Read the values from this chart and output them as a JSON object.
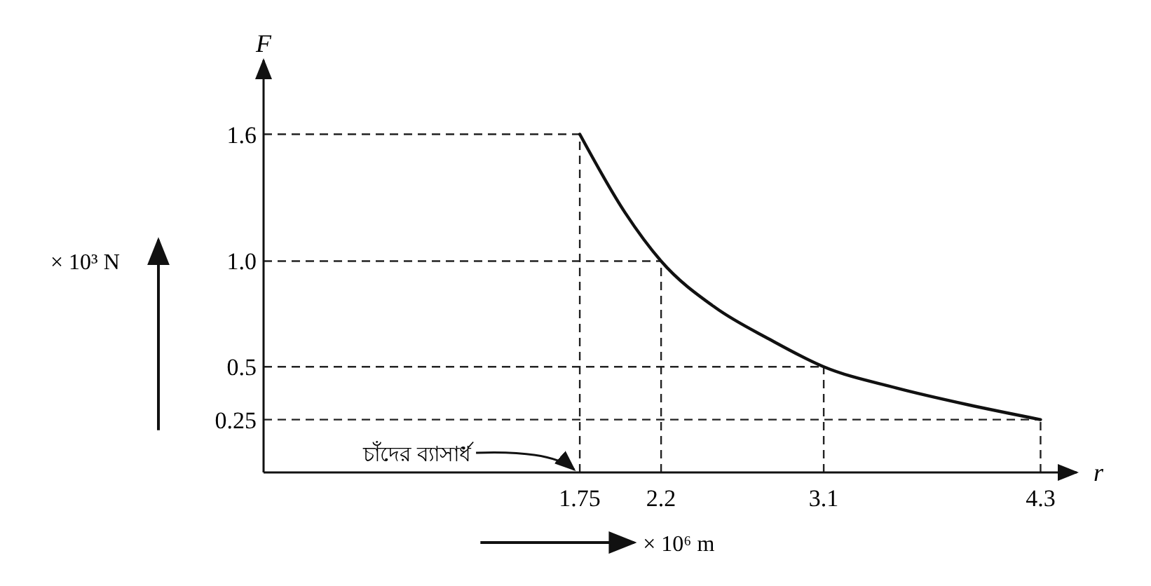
{
  "chart_data": {
    "type": "line",
    "xlabel": "r",
    "ylabel": "F",
    "x": [
      1.75,
      2.0,
      2.2,
      2.5,
      2.8,
      3.1,
      3.5,
      3.9,
      4.3
    ],
    "series": [
      {
        "color": "#111111",
        "values": [
          1.6,
          1.23,
          1.0,
          0.78,
          0.63,
          0.5,
          0.4,
          0.32,
          0.25
        ]
      }
    ],
    "xlim": [
      0,
      4.5
    ],
    "ylim": [
      0,
      1.95
    ],
    "xticks": [
      1.75,
      2.2,
      3.1,
      4.3
    ],
    "yticks": [
      0.25,
      0.5,
      {
        "value": 1,
        "label": "1.0"
      },
      1.6
    ],
    "marker": "none",
    "line_style": "solid",
    "ref_lines": [
      {
        "axis": "x",
        "value": 1.75,
        "line_style": "dashed"
      },
      {
        "axis": "x",
        "value": 2.2,
        "line_style": "dashed"
      },
      {
        "axis": "x",
        "value": 3.1,
        "line_style": "dashed"
      },
      {
        "axis": "x",
        "value": 4.3,
        "line_style": "dashed"
      },
      {
        "axis": "y",
        "value": 1.6,
        "line_style": "dashed"
      },
      {
        "axis": "y",
        "value": 1.0,
        "line_style": "dashed"
      },
      {
        "axis": "y",
        "value": 0.5,
        "line_style": "dashed"
      },
      {
        "axis": "y",
        "value": 0.25,
        "line_style": "dashed"
      }
    ],
    "annotations": [
      {
        "text": "চাঁদের ব্যাসার্ধ",
        "x": 1.75,
        "y": 0
      },
      "× 10³ N",
      "× 10⁶ m"
    ]
  }
}
